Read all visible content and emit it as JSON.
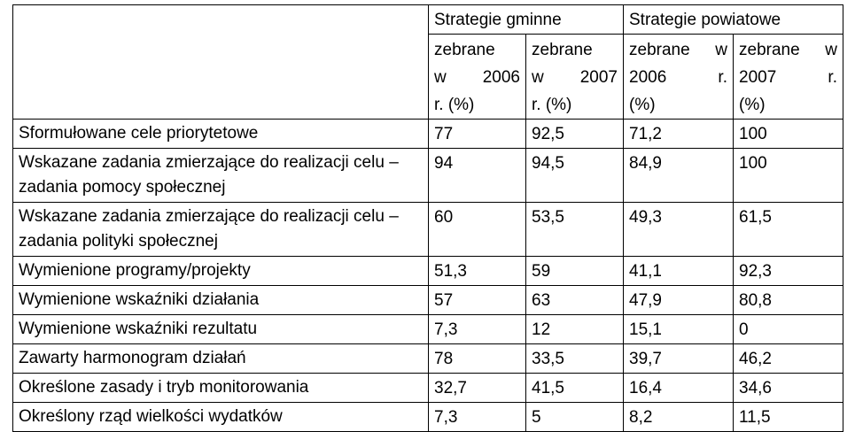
{
  "table": {
    "group_headers": [
      "Strategie gminne",
      "Strategie powiatowe"
    ],
    "sub_headers": [
      [
        "zebrane",
        "w 2006",
        "r. (%)"
      ],
      [
        "zebrane",
        "w 2007",
        "r. (%)"
      ],
      [
        "zebrane w",
        "2006 r.",
        "(%)"
      ],
      [
        "zebrane w",
        "2007 r.",
        "(%)"
      ]
    ],
    "rows": [
      {
        "label": "Sformułowane cele priorytetowe",
        "values": [
          "77",
          "92,5",
          "71,2",
          "100"
        ]
      },
      {
        "label": "Wskazane zadania zmierzające do realizacji celu – zadania pomocy społecznej",
        "values": [
          "94",
          "94,5",
          "84,9",
          "100"
        ]
      },
      {
        "label": "Wskazane zadania zmierzające do realizacji celu – zadania polityki  społecznej",
        "values": [
          "60",
          "53,5",
          "49,3",
          "61,5"
        ]
      },
      {
        "label": "Wymienione programy/projekty",
        "values": [
          "51,3",
          "59",
          "41,1",
          "92,3"
        ]
      },
      {
        "label": "Wymienione wskaźniki działania",
        "values": [
          "57",
          "63",
          "47,9",
          "80,8"
        ]
      },
      {
        "label": "Wymienione wskaźniki rezultatu",
        "values": [
          "7,3",
          "12",
          "15,1",
          "0"
        ]
      },
      {
        "label": "Zawarty harmonogram działań",
        "values": [
          "78",
          "33,5",
          "39,7",
          "46,2"
        ]
      },
      {
        "label": "Określone zasady i tryb monitorowania",
        "values": [
          "32,7",
          "41,5",
          "16,4",
          "34,6"
        ]
      },
      {
        "label": "Określony rząd wielkości wydatków",
        "values": [
          "7,3",
          "5",
          "8,2",
          "11,5"
        ]
      }
    ]
  }
}
